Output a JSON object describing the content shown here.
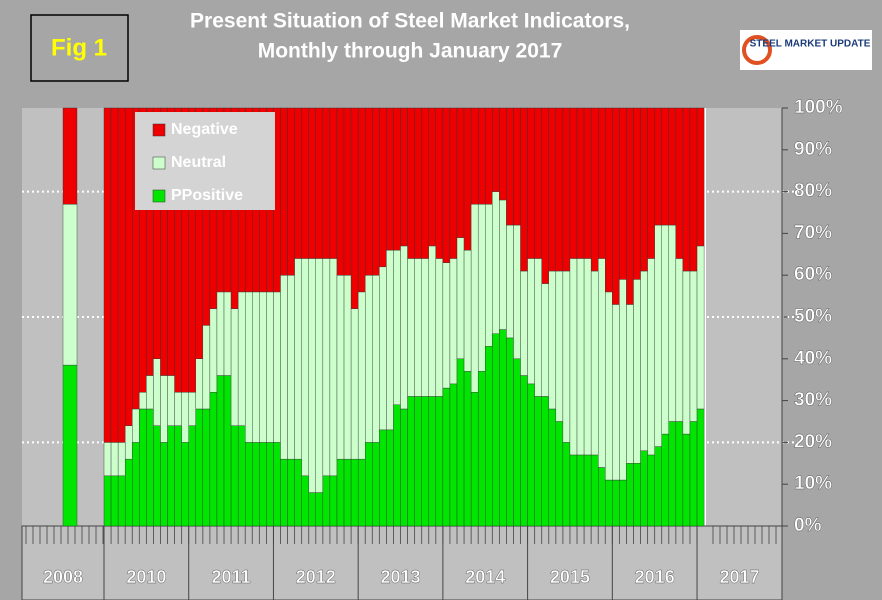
{
  "figure_label": "Fig 1",
  "logo_text": "STEEL MARKET UPDATE",
  "chart_data": {
    "type": "stacked_bar_100",
    "title": [
      "Present Situation of Steel Market Indicators,",
      "Monthly through January 2017"
    ],
    "categories": [
      "2008",
      "2010",
      "2010",
      "2010",
      "2010",
      "2010",
      "2010",
      "2010",
      "2010",
      "2010",
      "2010",
      "2010",
      "2010",
      "2011",
      "2011",
      "2011",
      "2011",
      "2011",
      "2011",
      "2011",
      "2011",
      "2011",
      "2011",
      "2011",
      "2011",
      "2012",
      "2012",
      "2012",
      "2012",
      "2012",
      "2012",
      "2012",
      "2012",
      "2012",
      "2012",
      "2012",
      "2012",
      "2013",
      "2013",
      "2013",
      "2013",
      "2013",
      "2013",
      "2013",
      "2013",
      "2013",
      "2013",
      "2013",
      "2013",
      "2014",
      "2014",
      "2014",
      "2014",
      "2014",
      "2014",
      "2014",
      "2014",
      "2014",
      "2014",
      "2014",
      "2014",
      "2015",
      "2015",
      "2015",
      "2015",
      "2015",
      "2015",
      "2015",
      "2015",
      "2015",
      "2015",
      "2015",
      "2015",
      "2016",
      "2016",
      "2016",
      "2016",
      "2016",
      "2016",
      "2016",
      "2016",
      "2016",
      "2016",
      "2016",
      "2016",
      "2017"
    ],
    "series": [
      {
        "name": "Negative",
        "color": "#ee0000",
        "values": [
          23,
          80,
          80,
          80,
          76,
          72,
          68,
          64,
          60,
          64,
          64,
          68,
          68,
          68,
          60,
          52,
          48,
          44,
          44,
          48,
          44,
          44,
          44,
          44,
          44,
          44,
          40,
          40,
          36,
          36,
          36,
          36,
          36,
          36,
          40,
          40,
          48,
          44,
          40,
          40,
          38,
          34,
          34,
          33,
          36,
          36,
          36,
          33,
          36,
          37,
          36,
          31,
          34,
          23,
          23,
          23,
          20,
          22,
          28,
          28,
          39,
          36,
          36,
          42,
          39,
          39,
          39,
          36,
          36,
          36,
          39,
          36,
          44,
          47,
          41,
          47,
          41,
          39,
          36,
          28,
          28,
          28,
          36,
          39,
          39,
          33
        ]
      },
      {
        "name": "Neutral",
        "color": "#ccffcc",
        "values": [
          38.5,
          8,
          8,
          8,
          8,
          8,
          4,
          8,
          16,
          16,
          12,
          8,
          12,
          8,
          12,
          20,
          20,
          20,
          20,
          28,
          32,
          36,
          36,
          36,
          36,
          36,
          44,
          44,
          48,
          52,
          56,
          56,
          52,
          52,
          44,
          44,
          36,
          40,
          40,
          40,
          39,
          43,
          37,
          39,
          33,
          33,
          33,
          36,
          33,
          30,
          30,
          29,
          29,
          45,
          40,
          34,
          34,
          31,
          27,
          32,
          25,
          30,
          33,
          27,
          33,
          36,
          41,
          47,
          47,
          47,
          44,
          50,
          45,
          42,
          48,
          38,
          44,
          43,
          47,
          53,
          50,
          47,
          39,
          39,
          36,
          39
        ]
      },
      {
        "name": "PPositive",
        "color": "#00e600",
        "values": [
          38.5,
          12,
          12,
          12,
          16,
          20,
          28,
          28,
          24,
          20,
          24,
          24,
          20,
          24,
          28,
          28,
          32,
          36,
          36,
          24,
          24,
          20,
          20,
          20,
          20,
          20,
          16,
          16,
          16,
          12,
          8,
          8,
          12,
          12,
          16,
          16,
          16,
          16,
          20,
          20,
          23,
          23,
          29,
          28,
          31,
          31,
          31,
          31,
          31,
          33,
          34,
          40,
          37,
          32,
          37,
          43,
          46,
          47,
          45,
          40,
          36,
          34,
          31,
          31,
          28,
          25,
          20,
          17,
          17,
          17,
          17,
          14,
          11,
          11,
          11,
          15,
          15,
          18,
          17,
          19,
          22,
          25,
          25,
          22,
          25,
          28
        ]
      }
    ],
    "ylim": [
      0,
      100
    ],
    "yticks": [
      {
        "value": 0,
        "label": "0%"
      },
      {
        "value": 10,
        "label": "10%"
      },
      {
        "value": 20,
        "label": "20%"
      },
      {
        "value": 30,
        "label": "30%"
      },
      {
        "value": 40,
        "label": "40%"
      },
      {
        "value": 50,
        "label": "50%"
      },
      {
        "value": 60,
        "label": "60%"
      },
      {
        "value": 70,
        "label": "70%"
      },
      {
        "value": 80,
        "label": "80%"
      },
      {
        "value": 90,
        "label": "90%"
      },
      {
        "value": 100,
        "label": "100%"
      }
    ],
    "gridlines": [
      20,
      50,
      80
    ],
    "legend": "upper-left"
  }
}
